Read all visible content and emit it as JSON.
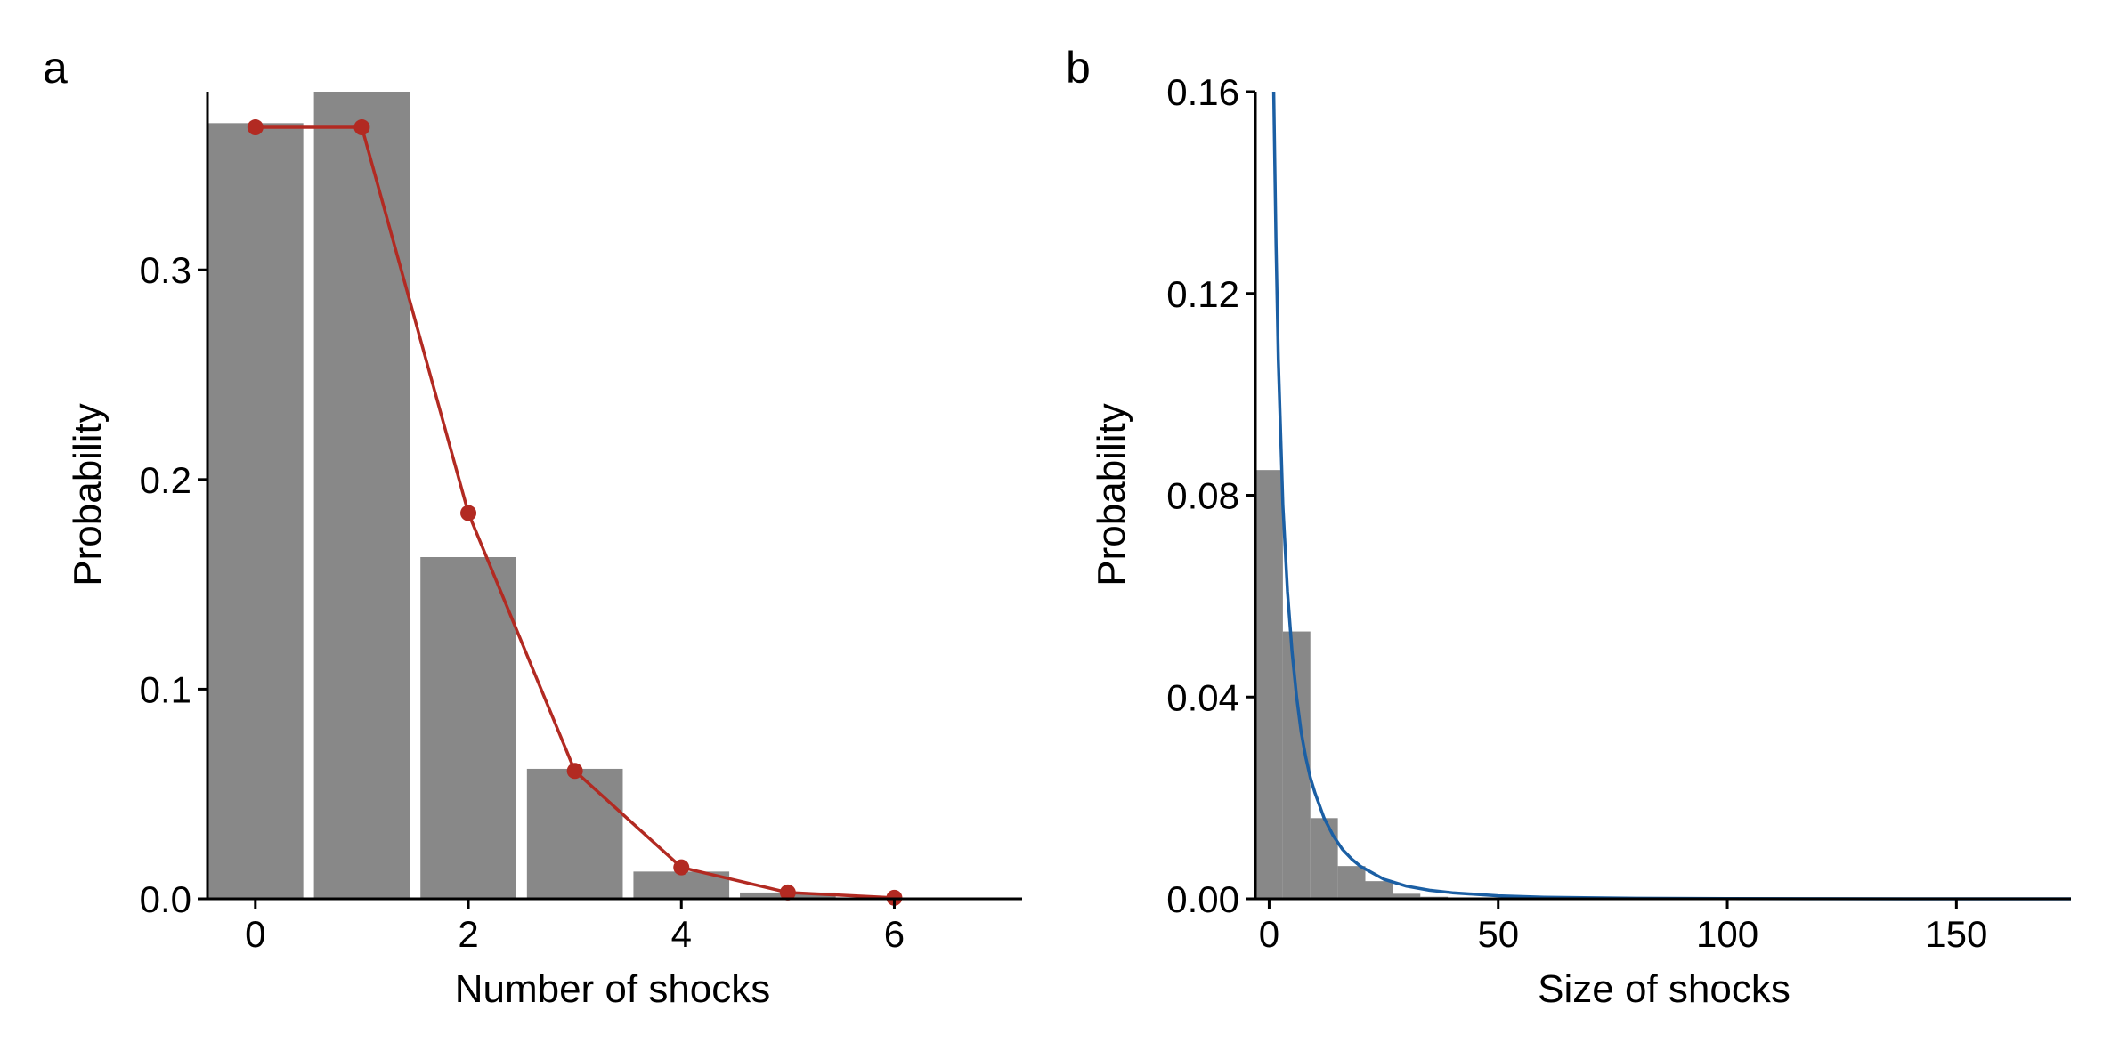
{
  "figure": {
    "colors": {
      "bar": "#888888",
      "poisson": "#B22A22",
      "exponential": "#1B5FA4",
      "axis": "#000000"
    }
  },
  "chart_data": [
    {
      "panel_label": "a",
      "type": "bar",
      "xlabel": "Number of shocks",
      "ylabel": "Probability",
      "xlim": [
        -0.45,
        7.2
      ],
      "ylim": [
        0,
        0.385
      ],
      "xticks": [
        0,
        2,
        4,
        6
      ],
      "xtick_labels": [
        "0",
        "2",
        "4",
        "6"
      ],
      "yticks": [
        0.0,
        0.1,
        0.2,
        0.3
      ],
      "ytick_labels": [
        "0.0",
        "0.1",
        "0.2",
        "0.3"
      ],
      "categories": [
        0,
        1,
        2,
        3,
        4,
        5
      ],
      "values": [
        0.37,
        0.385,
        0.163,
        0.062,
        0.013,
        0.003
      ],
      "line": {
        "x": [
          0,
          1,
          2,
          3,
          4,
          5,
          6
        ],
        "y": [
          0.368,
          0.368,
          0.184,
          0.061,
          0.015,
          0.003,
          0.0005
        ],
        "markers": true
      },
      "grid": false
    },
    {
      "panel_label": "b",
      "type": "bar",
      "xlabel": "Size of shocks",
      "ylabel": "Probability",
      "xlim": [
        -3,
        175
      ],
      "ylim": [
        0,
        0.16
      ],
      "xticks": [
        0,
        50,
        100,
        150
      ],
      "xtick_labels": [
        "0",
        "50",
        "100",
        "150"
      ],
      "yticks": [
        0.0,
        0.04,
        0.08,
        0.12,
        0.16
      ],
      "ytick_labels": [
        "0.00",
        "0.04",
        "0.08",
        "0.12",
        "0.16"
      ],
      "bins": [
        {
          "x0": -3,
          "x1": 3,
          "value": 0.085
        },
        {
          "x0": 3,
          "x1": 9,
          "value": 0.053
        },
        {
          "x0": 9,
          "x1": 15,
          "value": 0.016
        },
        {
          "x0": 15,
          "x1": 21,
          "value": 0.0065
        },
        {
          "x0": 21,
          "x1": 27,
          "value": 0.0035
        },
        {
          "x0": 27,
          "x1": 33,
          "value": 0.001
        },
        {
          "x0": 33,
          "x1": 39,
          "value": 0.0004
        }
      ],
      "curve": {
        "x": [
          1,
          1.5,
          2,
          3,
          4,
          5,
          6,
          7,
          8,
          9,
          10,
          12,
          14,
          16,
          18,
          20,
          25,
          30,
          35,
          40,
          50,
          60,
          80,
          100,
          120,
          140,
          160,
          175
        ],
        "y": [
          0.16,
          0.13,
          0.107,
          0.078,
          0.061,
          0.049,
          0.04,
          0.033,
          0.028,
          0.024,
          0.021,
          0.016,
          0.0125,
          0.0098,
          0.0079,
          0.0064,
          0.0039,
          0.0025,
          0.0017,
          0.0012,
          0.0006,
          0.0003,
          0.0001,
          5e-05,
          2e-05,
          1e-05,
          5e-06,
          3e-06
        ]
      },
      "grid": false
    }
  ]
}
